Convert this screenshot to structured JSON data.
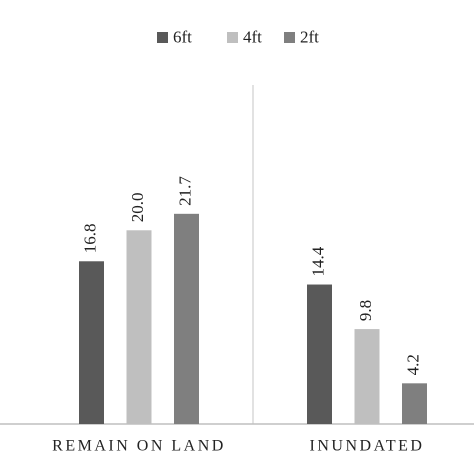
{
  "chart_data": {
    "type": "bar",
    "categories": [
      "REMAIN ON LAND",
      "INUNDATED"
    ],
    "series": [
      {
        "name": "6ft",
        "color": "#595959",
        "values": [
          16.8,
          14.4
        ]
      },
      {
        "name": "4ft",
        "color": "#bfbfbf",
        "values": [
          20.0,
          9.8
        ],
        "value_labels": [
          "20.0",
          "9.8"
        ]
      },
      {
        "name": "2ft",
        "color": "#7f7f7f",
        "values": [
          21.7,
          4.2
        ]
      }
    ],
    "ylim": [
      0,
      35
    ],
    "legend": "top"
  }
}
